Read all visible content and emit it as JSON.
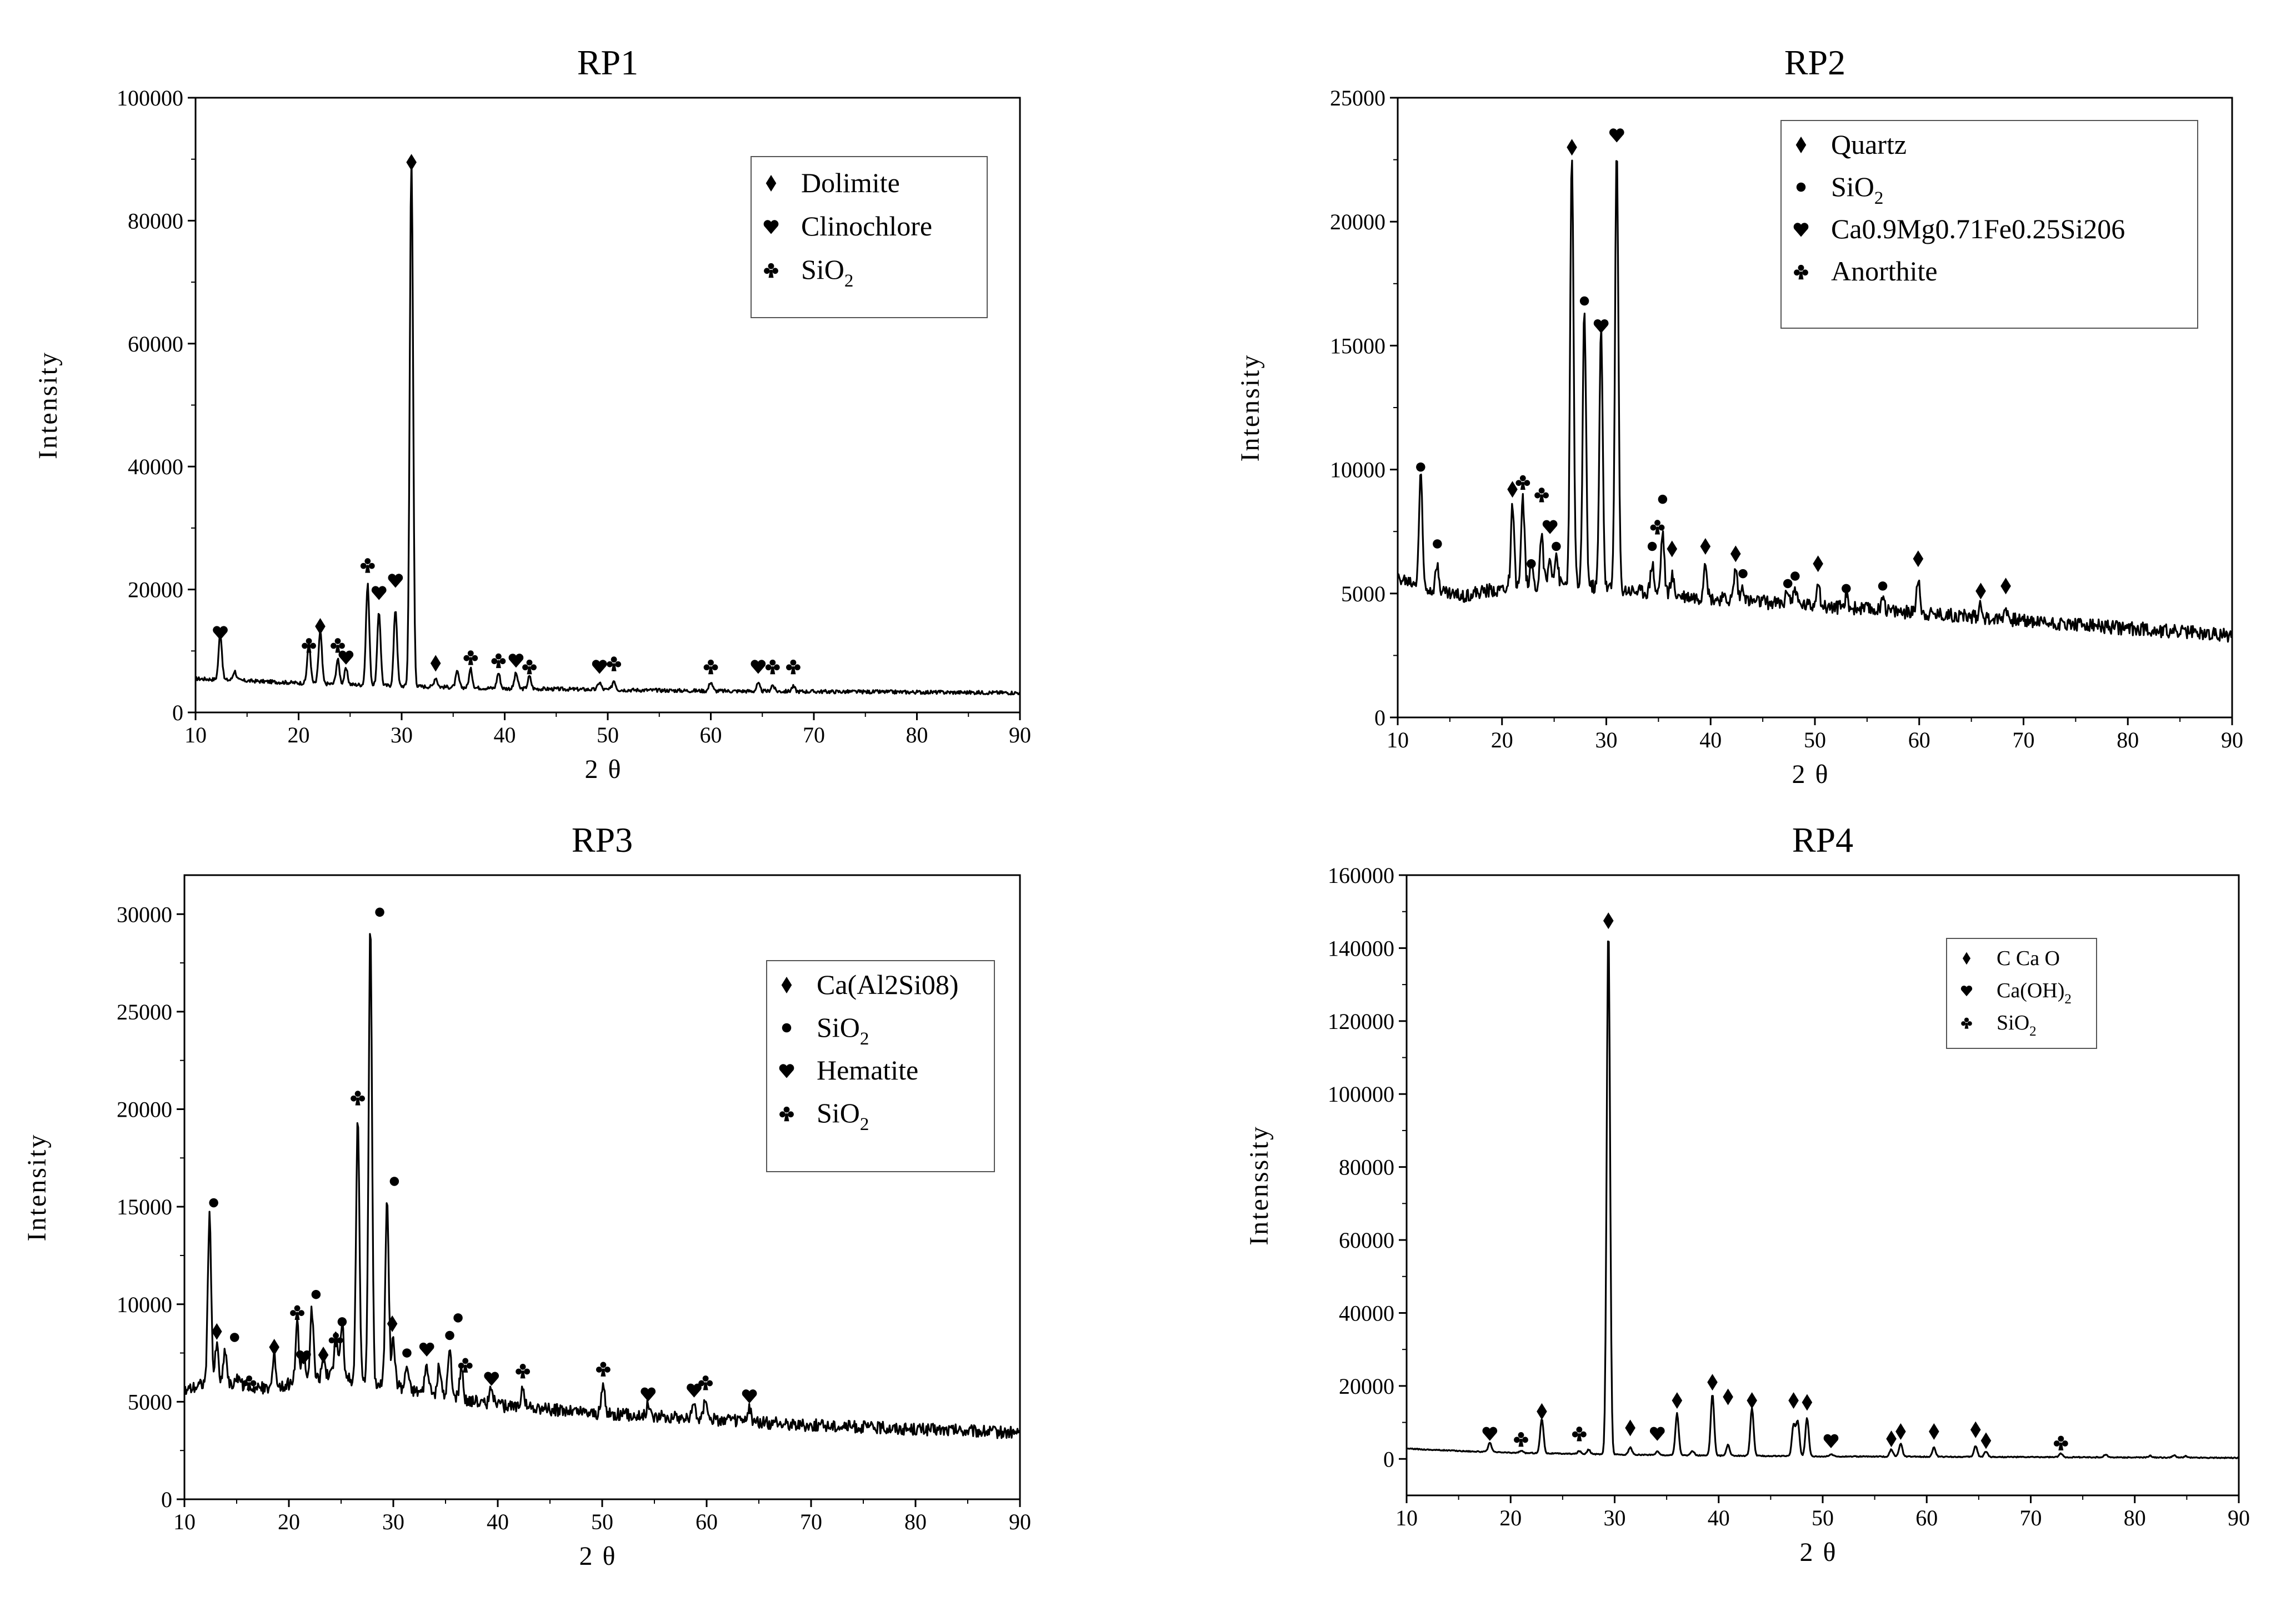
{
  "figure": {
    "axis_label_x": "2θ"
  },
  "chart_data": [
    {
      "id": "RP1",
      "type": "line",
      "title": "RP1",
      "xlabel": "2θ",
      "ylabel": "Intensity",
      "xlim": [
        10,
        90
      ],
      "ylim": [
        0,
        100000
      ],
      "xticks": [
        10,
        20,
        30,
        40,
        50,
        60,
        70,
        80,
        90
      ],
      "yticks": [
        0,
        20000,
        40000,
        60000,
        80000,
        100000
      ],
      "baseline": [
        [
          10,
          5500
        ],
        [
          20,
          4800
        ],
        [
          30,
          4300
        ],
        [
          40,
          3900
        ],
        [
          50,
          3700
        ],
        [
          60,
          3500
        ],
        [
          70,
          3400
        ],
        [
          80,
          3300
        ],
        [
          90,
          3200
        ]
      ],
      "noise": 300,
      "peaks": [
        [
          12.4,
          7500
        ],
        [
          13.8,
          1500
        ],
        [
          21.0,
          6500
        ],
        [
          22.1,
          8500
        ],
        [
          23.8,
          4000
        ],
        [
          24.6,
          2500
        ],
        [
          26.7,
          16500
        ],
        [
          27.8,
          12000
        ],
        [
          29.4,
          12500
        ],
        [
          30.95,
          86000
        ],
        [
          33.3,
          1500
        ],
        [
          35.4,
          2500
        ],
        [
          36.7,
          3000
        ],
        [
          39.4,
          2500
        ],
        [
          41.1,
          2500
        ],
        [
          42.4,
          2000
        ],
        [
          49.2,
          1200
        ],
        [
          50.6,
          1500
        ],
        [
          60.0,
          1500
        ],
        [
          64.6,
          1200
        ],
        [
          66.0,
          1000
        ],
        [
          68.0,
          800
        ]
      ],
      "markers": [
        {
          "x": 12.4,
          "y": 13000,
          "sym": "heart"
        },
        {
          "x": 21.0,
          "y": 11000,
          "sym": "club"
        },
        {
          "x": 22.1,
          "y": 14000,
          "sym": "diamond"
        },
        {
          "x": 23.8,
          "y": 11000,
          "sym": "club"
        },
        {
          "x": 24.6,
          "y": 9000,
          "sym": "heart"
        },
        {
          "x": 26.7,
          "y": 24000,
          "sym": "club"
        },
        {
          "x": 27.8,
          "y": 19500,
          "sym": "heart"
        },
        {
          "x": 29.4,
          "y": 21500,
          "sym": "heart"
        },
        {
          "x": 30.95,
          "y": 89500,
          "sym": "diamond"
        },
        {
          "x": 33.3,
          "y": 8000,
          "sym": "diamond"
        },
        {
          "x": 36.7,
          "y": 9000,
          "sym": "club"
        },
        {
          "x": 39.4,
          "y": 8500,
          "sym": "club"
        },
        {
          "x": 41.1,
          "y": 8500,
          "sym": "heart"
        },
        {
          "x": 42.4,
          "y": 7500,
          "sym": "club"
        },
        {
          "x": 49.2,
          "y": 7500,
          "sym": "heart"
        },
        {
          "x": 50.6,
          "y": 8000,
          "sym": "club"
        },
        {
          "x": 60.0,
          "y": 7500,
          "sym": "club"
        },
        {
          "x": 64.6,
          "y": 7500,
          "sym": "heart"
        },
        {
          "x": 66.0,
          "y": 7500,
          "sym": "club"
        },
        {
          "x": 68.0,
          "y": 7500,
          "sym": "club"
        }
      ],
      "legend": [
        {
          "sym": "diamond",
          "label": "Dolimite"
        },
        {
          "sym": "heart",
          "label": "Clinochlore"
        },
        {
          "sym": "club",
          "label": "SiO",
          "sub": "2"
        }
      ]
    },
    {
      "id": "RP2",
      "type": "line",
      "title": "RP2",
      "xlabel": "2θ",
      "ylabel": "Intensity",
      "xlim": [
        10,
        90
      ],
      "ylim": [
        0,
        25000
      ],
      "xticks": [
        10,
        20,
        30,
        40,
        50,
        60,
        70,
        80,
        90
      ],
      "yticks": [
        0,
        5000,
        10000,
        15000,
        20000,
        25000
      ],
      "baseline": [
        [
          10,
          5600
        ],
        [
          16,
          4900
        ],
        [
          20,
          5200
        ],
        [
          25,
          5400
        ],
        [
          30,
          5200
        ],
        [
          35,
          5000
        ],
        [
          40,
          4800
        ],
        [
          50,
          4500
        ],
        [
          60,
          4200
        ],
        [
          70,
          3900
        ],
        [
          80,
          3600
        ],
        [
          90,
          3300
        ]
      ],
      "noise": 280,
      "peaks": [
        [
          12.2,
          4500
        ],
        [
          13.8,
          1000
        ],
        [
          21.0,
          3200
        ],
        [
          22.0,
          3500
        ],
        [
          22.8,
          800
        ],
        [
          23.8,
          2000
        ],
        [
          24.6,
          1000
        ],
        [
          25.2,
          1200
        ],
        [
          26.7,
          17500
        ],
        [
          27.9,
          11200
        ],
        [
          29.5,
          10500
        ],
        [
          31.0,
          17800
        ],
        [
          34.4,
          1200
        ],
        [
          35.4,
          2500
        ],
        [
          36.3,
          800
        ],
        [
          39.5,
          1600
        ],
        [
          42.4,
          1300
        ],
        [
          43.1,
          600
        ],
        [
          47.4,
          600
        ],
        [
          48.1,
          700
        ],
        [
          50.3,
          1100
        ],
        [
          53.0,
          500
        ],
        [
          56.5,
          700
        ],
        [
          59.9,
          1500
        ],
        [
          65.9,
          600
        ],
        [
          68.3,
          500
        ]
      ],
      "markers": [
        {
          "x": 12.2,
          "y": 10100,
          "sym": "dot"
        },
        {
          "x": 13.8,
          "y": 7000,
          "sym": "dot"
        },
        {
          "x": 21.0,
          "y": 9200,
          "sym": "diamond"
        },
        {
          "x": 22.0,
          "y": 9500,
          "sym": "club"
        },
        {
          "x": 22.8,
          "y": 6200,
          "sym": "dot"
        },
        {
          "x": 23.8,
          "y": 9000,
          "sym": "club"
        },
        {
          "x": 24.6,
          "y": 7700,
          "sym": "heart"
        },
        {
          "x": 25.2,
          "y": 6900,
          "sym": "dot"
        },
        {
          "x": 26.7,
          "y": 23000,
          "sym": "diamond"
        },
        {
          "x": 27.9,
          "y": 16800,
          "sym": "dot"
        },
        {
          "x": 29.5,
          "y": 15800,
          "sym": "heart"
        },
        {
          "x": 31.0,
          "y": 23500,
          "sym": "heart"
        },
        {
          "x": 34.4,
          "y": 6900,
          "sym": "dot"
        },
        {
          "x": 34.9,
          "y": 7700,
          "sym": "club"
        },
        {
          "x": 35.4,
          "y": 8800,
          "sym": "dot"
        },
        {
          "x": 36.3,
          "y": 6800,
          "sym": "diamond"
        },
        {
          "x": 39.5,
          "y": 6900,
          "sym": "diamond"
        },
        {
          "x": 42.4,
          "y": 6600,
          "sym": "diamond"
        },
        {
          "x": 43.1,
          "y": 5800,
          "sym": "dot"
        },
        {
          "x": 47.4,
          "y": 5400,
          "sym": "dot"
        },
        {
          "x": 48.1,
          "y": 5700,
          "sym": "dot"
        },
        {
          "x": 50.3,
          "y": 6200,
          "sym": "diamond"
        },
        {
          "x": 53.0,
          "y": 5200,
          "sym": "dot"
        },
        {
          "x": 56.5,
          "y": 5300,
          "sym": "dot"
        },
        {
          "x": 59.9,
          "y": 6400,
          "sym": "diamond"
        },
        {
          "x": 65.9,
          "y": 5100,
          "sym": "diamond"
        },
        {
          "x": 68.3,
          "y": 5300,
          "sym": "diamond"
        }
      ],
      "legend": [
        {
          "sym": "diamond",
          "label": "Quartz"
        },
        {
          "sym": "dot",
          "label": "SiO",
          "sub": "2"
        },
        {
          "sym": "heart",
          "label": "Ca0.9Mg0.71Fe0.25Si206"
        },
        {
          "sym": "club",
          "label": "Anorthite"
        }
      ]
    },
    {
      "id": "RP3",
      "type": "line",
      "title": "RP3",
      "xlabel": "2θ",
      "ylabel": "Intensity",
      "xlim": [
        10,
        90
      ],
      "ylim": [
        0,
        32000
      ],
      "xticks": [
        10,
        20,
        30,
        40,
        50,
        60,
        70,
        80,
        90
      ],
      "yticks": [
        0,
        5000,
        10000,
        15000,
        20000,
        25000,
        30000
      ],
      "baseline": [
        [
          10,
          5600
        ],
        [
          12,
          6000
        ],
        [
          18,
          5700
        ],
        [
          24,
          6300
        ],
        [
          30,
          5800
        ],
        [
          36,
          5200
        ],
        [
          40,
          4800
        ],
        [
          50,
          4400
        ],
        [
          60,
          4100
        ],
        [
          70,
          3800
        ],
        [
          80,
          3600
        ],
        [
          90,
          3400
        ]
      ],
      "noise": 320,
      "peaks": [
        [
          12.4,
          8500
        ],
        [
          13.1,
          2000
        ],
        [
          13.9,
          1800
        ],
        [
          15.2,
          500
        ],
        [
          18.6,
          1500
        ],
        [
          20.8,
          3000
        ],
        [
          21.4,
          1500
        ],
        [
          22.2,
          3600
        ],
        [
          23.3,
          1000
        ],
        [
          24.5,
          2500
        ],
        [
          25.1,
          2800
        ],
        [
          26.6,
          13500
        ],
        [
          27.8,
          23500
        ],
        [
          29.4,
          9800
        ],
        [
          30.0,
          2500
        ],
        [
          31.3,
          1200
        ],
        [
          33.2,
          1400
        ],
        [
          34.4,
          1500
        ],
        [
          35.4,
          2400
        ],
        [
          36.5,
          1600
        ],
        [
          39.4,
          1000
        ],
        [
          42.4,
          1200
        ],
        [
          50.1,
          1500
        ],
        [
          54.4,
          600
        ],
        [
          58.8,
          800
        ],
        [
          59.9,
          1200
        ],
        [
          64.1,
          600
        ]
      ],
      "markers": [
        {
          "x": 12.8,
          "y": 15200,
          "sym": "dot"
        },
        {
          "x": 13.1,
          "y": 8600,
          "sym": "diamond"
        },
        {
          "x": 14.8,
          "y": 8300,
          "sym": "dot"
        },
        {
          "x": 16.2,
          "y": 6000,
          "sym": "club"
        },
        {
          "x": 18.6,
          "y": 7800,
          "sym": "diamond"
        },
        {
          "x": 20.8,
          "y": 9600,
          "sym": "club"
        },
        {
          "x": 21.4,
          "y": 7300,
          "sym": "heart"
        },
        {
          "x": 22.6,
          "y": 10500,
          "sym": "dot"
        },
        {
          "x": 23.3,
          "y": 7400,
          "sym": "diamond"
        },
        {
          "x": 24.5,
          "y": 8200,
          "sym": "club"
        },
        {
          "x": 25.1,
          "y": 9100,
          "sym": "dot"
        },
        {
          "x": 26.6,
          "y": 20600,
          "sym": "club"
        },
        {
          "x": 28.7,
          "y": 30100,
          "sym": "dot"
        },
        {
          "x": 30.1,
          "y": 16300,
          "sym": "dot"
        },
        {
          "x": 29.9,
          "y": 9000,
          "sym": "diamond"
        },
        {
          "x": 31.3,
          "y": 7500,
          "sym": "dot"
        },
        {
          "x": 33.2,
          "y": 7700,
          "sym": "heart"
        },
        {
          "x": 35.4,
          "y": 8400,
          "sym": "dot"
        },
        {
          "x": 36.2,
          "y": 9300,
          "sym": "dot"
        },
        {
          "x": 36.9,
          "y": 6900,
          "sym": "club"
        },
        {
          "x": 39.4,
          "y": 6200,
          "sym": "heart"
        },
        {
          "x": 42.4,
          "y": 6600,
          "sym": "club"
        },
        {
          "x": 50.1,
          "y": 6700,
          "sym": "club"
        },
        {
          "x": 54.4,
          "y": 5400,
          "sym": "heart"
        },
        {
          "x": 58.8,
          "y": 5600,
          "sym": "heart"
        },
        {
          "x": 59.9,
          "y": 6000,
          "sym": "club"
        },
        {
          "x": 64.1,
          "y": 5300,
          "sym": "heart"
        }
      ],
      "legend": [
        {
          "sym": "diamond",
          "label": "Ca(Al2Si08)"
        },
        {
          "sym": "dot",
          "label": "SiO",
          "sub": "2"
        },
        {
          "sym": "heart",
          "label": "Hematite"
        },
        {
          "sym": "club",
          "label": "SiO",
          "sub": "2"
        }
      ]
    },
    {
      "id": "RP4",
      "type": "line",
      "title": "RP4",
      "xlabel": "2θ",
      "ylabel": "Intenssity",
      "xlim": [
        10,
        90
      ],
      "ylim": [
        -10000,
        160000
      ],
      "xticks": [
        10,
        20,
        30,
        40,
        50,
        60,
        70,
        80,
        90
      ],
      "yticks": [
        0,
        20000,
        40000,
        60000,
        80000,
        100000,
        120000,
        140000,
        160000
      ],
      "baseline": [
        [
          10,
          2800
        ],
        [
          15,
          2200
        ],
        [
          20,
          1700
        ],
        [
          30,
          1200
        ],
        [
          40,
          900
        ],
        [
          50,
          700
        ],
        [
          60,
          600
        ],
        [
          70,
          500
        ],
        [
          80,
          400
        ],
        [
          90,
          300
        ]
      ],
      "noise": 140,
      "peaks": [
        [
          18.0,
          2500
        ],
        [
          21.0,
          600
        ],
        [
          23.0,
          9500
        ],
        [
          26.6,
          800
        ],
        [
          27.5,
          1200
        ],
        [
          29.4,
          145000
        ],
        [
          31.5,
          2000
        ],
        [
          34.1,
          1000
        ],
        [
          36.0,
          11500
        ],
        [
          37.5,
          1200
        ],
        [
          39.4,
          17000
        ],
        [
          40.9,
          3000
        ],
        [
          43.2,
          13000
        ],
        [
          47.2,
          8500
        ],
        [
          47.6,
          9500
        ],
        [
          48.5,
          10500
        ],
        [
          50.8,
          600
        ],
        [
          56.6,
          2000
        ],
        [
          57.5,
          3500
        ],
        [
          60.7,
          2500
        ],
        [
          64.7,
          3000
        ],
        [
          65.7,
          1500
        ],
        [
          72.9,
          1000
        ],
        [
          77.2,
          800
        ],
        [
          81.5,
          500
        ],
        [
          83.8,
          600
        ],
        [
          84.9,
          400
        ]
      ],
      "markers": [
        {
          "x": 18.0,
          "y": 7000,
          "sym": "heart"
        },
        {
          "x": 21.0,
          "y": 5500,
          "sym": "club"
        },
        {
          "x": 23.0,
          "y": 13000,
          "sym": "diamond"
        },
        {
          "x": 26.6,
          "y": 7000,
          "sym": "club"
        },
        {
          "x": 29.4,
          "y": 147500,
          "sym": "diamond"
        },
        {
          "x": 31.5,
          "y": 8500,
          "sym": "diamond"
        },
        {
          "x": 34.1,
          "y": 7000,
          "sym": "heart"
        },
        {
          "x": 36.0,
          "y": 16000,
          "sym": "diamond"
        },
        {
          "x": 39.4,
          "y": 21000,
          "sym": "diamond"
        },
        {
          "x": 40.9,
          "y": 17000,
          "sym": "diamond"
        },
        {
          "x": 43.2,
          "y": 16000,
          "sym": "diamond"
        },
        {
          "x": 47.2,
          "y": 16000,
          "sym": "diamond"
        },
        {
          "x": 48.5,
          "y": 15500,
          "sym": "diamond"
        },
        {
          "x": 50.8,
          "y": 5000,
          "sym": "heart"
        },
        {
          "x": 56.6,
          "y": 5500,
          "sym": "diamond"
        },
        {
          "x": 57.5,
          "y": 7500,
          "sym": "diamond"
        },
        {
          "x": 60.7,
          "y": 7500,
          "sym": "diamond"
        },
        {
          "x": 64.7,
          "y": 8000,
          "sym": "diamond"
        },
        {
          "x": 65.7,
          "y": 5000,
          "sym": "diamond"
        },
        {
          "x": 72.9,
          "y": 4500,
          "sym": "club"
        }
      ],
      "legend": [
        {
          "sym": "diamond",
          "label": "C Ca O"
        },
        {
          "sym": "heart",
          "label": "Ca(OH)",
          "sub": "2"
        },
        {
          "sym": "club",
          "label": "SiO",
          "sub": "2"
        }
      ]
    }
  ]
}
